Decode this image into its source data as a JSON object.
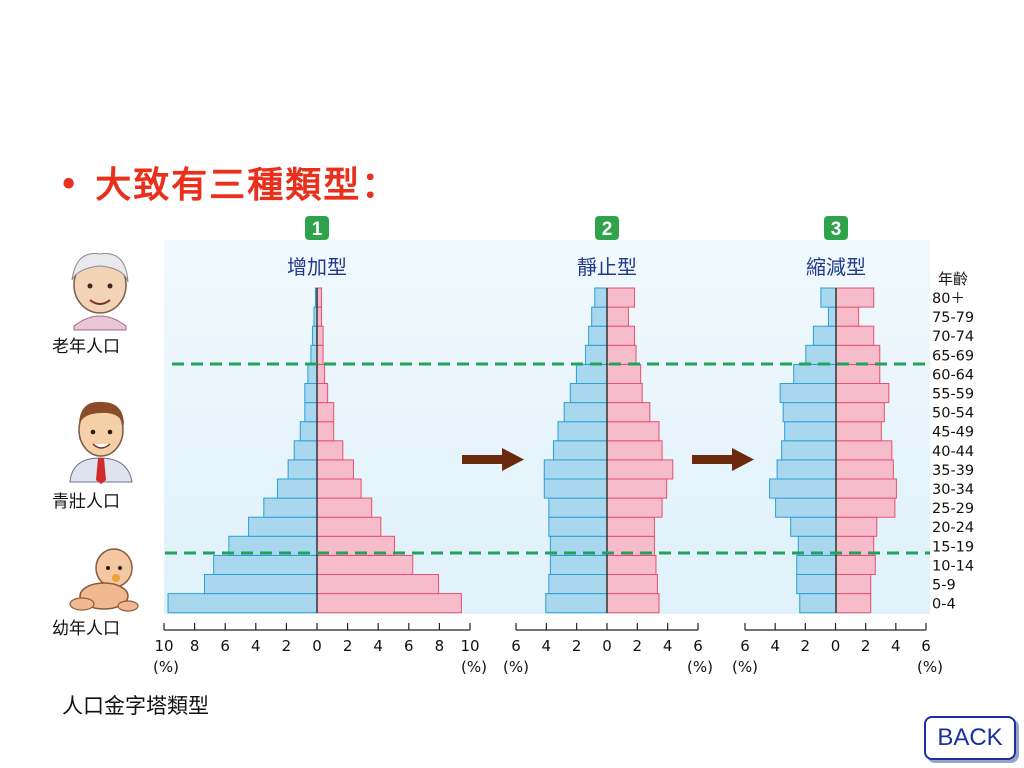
{
  "slide": {
    "bullet": "•",
    "heading": "大致有三種類型：",
    "caption": "人口金字塔類型",
    "back_label": "BACK"
  },
  "age_column_title": "年齡",
  "age_groups_top_to_bottom": [
    "80＋",
    "75-79",
    "70-74",
    "65-69",
    "60-64",
    "55-59",
    "50-54",
    "45-49",
    "40-44",
    "35-39",
    "30-34",
    "25-29",
    "20-24",
    "15-19",
    "10-14",
    "5-9",
    "0-4"
  ],
  "life_stages": [
    {
      "label": "老年人口",
      "icon": "elderly-person-icon"
    },
    {
      "label": "青壯人口",
      "icon": "adult-man-icon"
    },
    {
      "label": "幼年人口",
      "icon": "baby-icon"
    }
  ],
  "arrows": [
    "right-arrow-icon",
    "right-arrow-icon"
  ],
  "colors": {
    "male_fill": "#a9d8ee",
    "male_stroke": "#2a9fd8",
    "female_fill": "#f6bccb",
    "female_stroke": "#e8506f",
    "background": "#e4f3fb",
    "divider": "#23a35a",
    "badge": "#2fa34b",
    "arrow": "#6b2a0e",
    "title": "#233a8c"
  },
  "chart_data": [
    {
      "type": "bar",
      "number": "1",
      "title": "增加型",
      "unit_label": "(%)",
      "xlim": [
        -10,
        10
      ],
      "ticks": [
        "10",
        "8",
        "6",
        "4",
        "2",
        "0",
        "2",
        "4",
        "6",
        "8",
        "10"
      ],
      "categories": [
        "0-4",
        "5-9",
        "10-14",
        "15-19",
        "20-24",
        "25-29",
        "30-34",
        "35-39",
        "40-44",
        "45-49",
        "50-54",
        "55-59",
        "60-64",
        "65-69",
        "70-74",
        "75-79",
        "80＋"
      ],
      "series": [
        {
          "side": "left",
          "values": [
            9.8,
            7.4,
            6.8,
            5.8,
            4.5,
            3.5,
            2.6,
            1.9,
            1.5,
            1.1,
            0.8,
            0.8,
            0.6,
            0.4,
            0.3,
            0.2,
            0.1
          ]
        },
        {
          "side": "right",
          "values": [
            9.5,
            8.0,
            6.3,
            5.1,
            4.2,
            3.6,
            2.9,
            2.4,
            1.7,
            1.1,
            1.1,
            0.7,
            0.5,
            0.4,
            0.4,
            0.3,
            0.3
          ]
        }
      ]
    },
    {
      "type": "bar",
      "number": "2",
      "title": "靜止型",
      "unit_label": "(%)",
      "xlim": [
        -6,
        6
      ],
      "ticks": [
        "6",
        "4",
        "2",
        "0",
        "2",
        "4",
        "6"
      ],
      "categories": [
        "0-4",
        "5-9",
        "10-14",
        "15-19",
        "20-24",
        "25-29",
        "30-34",
        "35-39",
        "40-44",
        "45-49",
        "50-54",
        "55-59",
        "60-64",
        "65-69",
        "70-74",
        "75-79",
        "80＋"
      ],
      "series": [
        {
          "side": "left",
          "values": [
            4.0,
            3.8,
            3.7,
            3.7,
            3.8,
            3.8,
            4.1,
            4.1,
            3.5,
            3.2,
            2.8,
            2.4,
            2.0,
            1.4,
            1.2,
            1.0,
            0.8
          ]
        },
        {
          "side": "right",
          "values": [
            3.4,
            3.3,
            3.2,
            3.1,
            3.1,
            3.6,
            3.9,
            4.3,
            3.6,
            3.4,
            2.8,
            2.3,
            2.2,
            1.9,
            1.8,
            1.4,
            1.8
          ]
        }
      ]
    },
    {
      "type": "bar",
      "number": "3",
      "title": "縮減型",
      "unit_label": "(%)",
      "xlim": [
        -6,
        6
      ],
      "ticks": [
        "6",
        "4",
        "2",
        "0",
        "2",
        "4",
        "6"
      ],
      "categories": [
        "0-4",
        "5-9",
        "10-14",
        "15-19",
        "20-24",
        "25-29",
        "30-34",
        "35-39",
        "40-44",
        "45-49",
        "50-54",
        "55-59",
        "60-64",
        "65-69",
        "70-74",
        "75-79",
        "80＋"
      ],
      "series": [
        {
          "side": "left",
          "values": [
            2.4,
            2.6,
            2.6,
            2.5,
            3.0,
            4.0,
            4.4,
            3.9,
            3.6,
            3.4,
            3.5,
            3.7,
            2.8,
            2.0,
            1.5,
            0.5,
            1.0
          ]
        },
        {
          "side": "right",
          "values": [
            2.3,
            2.3,
            2.6,
            2.5,
            2.7,
            3.9,
            4.0,
            3.8,
            3.7,
            3.0,
            3.2,
            3.5,
            2.9,
            2.9,
            2.5,
            1.5,
            2.5
          ]
        }
      ]
    }
  ]
}
